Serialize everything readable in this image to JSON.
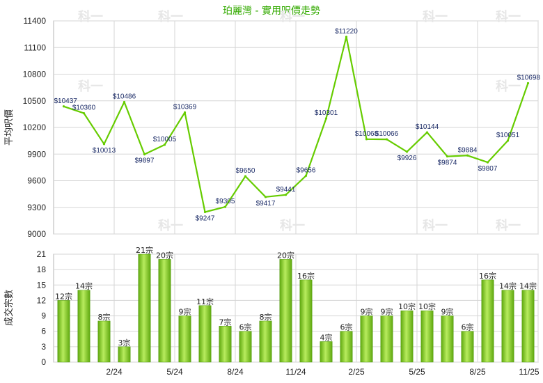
{
  "chart_data": [
    {
      "type": "line",
      "title": "珀麗灣 - 實用呎價走勢",
      "ylabel": "平均呎價",
      "ylim": [
        9000,
        11400
      ],
      "yticks": [
        9000,
        9300,
        9600,
        9900,
        10200,
        10500,
        10800,
        11100,
        11400
      ],
      "xtick_labels": [
        "2/24",
        "5/24",
        "8/24",
        "11/24",
        "2/25",
        "5/25",
        "8/25",
        "11/25"
      ],
      "grid": true,
      "color": "#66cc00",
      "values": [
        10437,
        10360,
        10013,
        10486,
        9897,
        10005,
        10369,
        9247,
        9305,
        9650,
        9417,
        9441,
        9656,
        10301,
        11220,
        10068,
        10066,
        9926,
        10144,
        9874,
        9884,
        9807,
        10051,
        10698
      ],
      "labels": [
        "$10437",
        "$10360",
        "$10013",
        "$10486",
        "$9897",
        "$10005",
        "$10369",
        "$9247",
        "$9305",
        "$9650",
        "$9417",
        "$9441",
        "$9656",
        "$10301",
        "$11220",
        "$10068",
        "$10066",
        "$9926",
        "$10144",
        "$9874",
        "$9884",
        "$9807",
        "$10051",
        "$10698"
      ]
    },
    {
      "type": "bar",
      "ylabel": "成交宗數",
      "ylim": [
        0,
        21
      ],
      "yticks": [
        0,
        3,
        6,
        9,
        12,
        15,
        18,
        21
      ],
      "xtick_labels": [
        "2/24",
        "5/24",
        "8/24",
        "11/24",
        "2/25",
        "5/25",
        "8/25",
        "11/25"
      ],
      "grid": true,
      "color": "#66bb11",
      "values": [
        12,
        14,
        8,
        3,
        21,
        20,
        9,
        11,
        7,
        6,
        8,
        20,
        16,
        4,
        6,
        9,
        9,
        10,
        10,
        9,
        6,
        16,
        14,
        14
      ],
      "labels": [
        "12宗",
        "14宗",
        "8宗",
        "3宗",
        "21宗",
        "20宗",
        "9宗",
        "11宗",
        "7宗",
        "6宗",
        "8宗",
        "20宗",
        "16宗",
        "4宗",
        "6宗",
        "9宗",
        "9宗",
        "10宗",
        "10宗",
        "9宗",
        "6宗",
        "16宗",
        "14宗",
        "14宗"
      ]
    }
  ],
  "watermark": "科一"
}
